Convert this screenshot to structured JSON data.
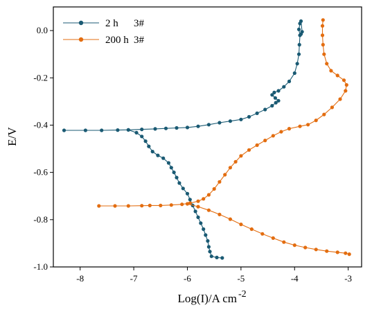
{
  "chart_data": {
    "type": "line",
    "xlabel": "Log(I)/A cm",
    "xlabel_superscript": "-2",
    "ylabel": "E/V",
    "xlim": [
      -8.5,
      -2.75
    ],
    "ylim": [
      -1.0,
      0.1
    ],
    "xticks": [
      -8,
      -7,
      -6,
      -5,
      -4,
      -3
    ],
    "yticks": [
      0.0,
      -0.2,
      -0.4,
      -0.6,
      -0.8,
      -1.0
    ],
    "xtick_labels": [
      "-8",
      "-7",
      "-6",
      "-5",
      "-4",
      "-3"
    ],
    "ytick_labels": [
      "0.0",
      "-0.2",
      "-0.4",
      "-0.6",
      "-0.8",
      "-1.0"
    ],
    "grid": false,
    "legend_position": "top-left",
    "series": [
      {
        "name": "2 h",
        "sample": "3#",
        "color": "#1a5a73",
        "points": [
          [
            -8.3,
            -0.422
          ],
          [
            -7.9,
            -0.422
          ],
          [
            -7.6,
            -0.422
          ],
          [
            -7.3,
            -0.421
          ],
          [
            -7.1,
            -0.42
          ],
          [
            -6.85,
            -0.418
          ],
          [
            -6.6,
            -0.416
          ],
          [
            -6.4,
            -0.414
          ],
          [
            -6.2,
            -0.412
          ],
          [
            -6.0,
            -0.41
          ],
          [
            -5.8,
            -0.405
          ],
          [
            -5.6,
            -0.398
          ],
          [
            -5.4,
            -0.39
          ],
          [
            -5.2,
            -0.383
          ],
          [
            -5.0,
            -0.376
          ],
          [
            -4.85,
            -0.365
          ],
          [
            -4.7,
            -0.35
          ],
          [
            -4.55,
            -0.334
          ],
          [
            -4.42,
            -0.318
          ],
          [
            -4.35,
            -0.305
          ],
          [
            -4.3,
            -0.297
          ],
          [
            -4.36,
            -0.285
          ],
          [
            -4.42,
            -0.272
          ],
          [
            -4.38,
            -0.262
          ],
          [
            -4.3,
            -0.255
          ],
          [
            -4.2,
            -0.238
          ],
          [
            -4.1,
            -0.215
          ],
          [
            -4.0,
            -0.18
          ],
          [
            -3.95,
            -0.14
          ],
          [
            -3.92,
            -0.1
          ],
          [
            -3.91,
            -0.06
          ],
          [
            -3.9,
            -0.02
          ],
          [
            -3.92,
            0.005
          ],
          [
            -3.9,
            0.03
          ],
          [
            -3.88,
            0.04
          ],
          [
            -3.86,
            -0.005
          ],
          [
            -3.88,
            -0.015
          ]
        ],
        "points_cathodic": [
          [
            -7.1,
            -0.42
          ],
          [
            -6.95,
            -0.432
          ],
          [
            -6.85,
            -0.448
          ],
          [
            -6.78,
            -0.468
          ],
          [
            -6.72,
            -0.49
          ],
          [
            -6.65,
            -0.512
          ],
          [
            -6.55,
            -0.528
          ],
          [
            -6.45,
            -0.54
          ],
          [
            -6.35,
            -0.56
          ],
          [
            -6.3,
            -0.58
          ],
          [
            -6.25,
            -0.6
          ],
          [
            -6.2,
            -0.622
          ],
          [
            -6.15,
            -0.645
          ],
          [
            -6.08,
            -0.668
          ],
          [
            -6.0,
            -0.69
          ],
          [
            -5.95,
            -0.715
          ],
          [
            -5.9,
            -0.74
          ],
          [
            -5.85,
            -0.765
          ],
          [
            -5.8,
            -0.79
          ],
          [
            -5.75,
            -0.815
          ],
          [
            -5.7,
            -0.84
          ],
          [
            -5.66,
            -0.865
          ],
          [
            -5.62,
            -0.89
          ],
          [
            -5.6,
            -0.915
          ],
          [
            -5.58,
            -0.935
          ],
          [
            -5.55,
            -0.955
          ],
          [
            -5.45,
            -0.96
          ],
          [
            -5.35,
            -0.962
          ]
        ]
      },
      {
        "name": "200 h",
        "sample": "3#",
        "color": "#e36d10",
        "points": [
          [
            -7.65,
            -0.742
          ],
          [
            -7.35,
            -0.742
          ],
          [
            -7.1,
            -0.742
          ],
          [
            -6.85,
            -0.741
          ],
          [
            -6.7,
            -0.74
          ],
          [
            -6.5,
            -0.74
          ],
          [
            -6.3,
            -0.738
          ],
          [
            -6.1,
            -0.735
          ],
          [
            -5.95,
            -0.73
          ],
          [
            -5.8,
            -0.722
          ],
          [
            -5.7,
            -0.712
          ],
          [
            -5.6,
            -0.695
          ],
          [
            -5.5,
            -0.67
          ],
          [
            -5.4,
            -0.64
          ],
          [
            -5.3,
            -0.61
          ],
          [
            -5.2,
            -0.58
          ],
          [
            -5.1,
            -0.555
          ],
          [
            -5.0,
            -0.53
          ],
          [
            -4.85,
            -0.505
          ],
          [
            -4.7,
            -0.485
          ],
          [
            -4.55,
            -0.465
          ],
          [
            -4.4,
            -0.445
          ],
          [
            -4.25,
            -0.428
          ],
          [
            -4.1,
            -0.415
          ],
          [
            -3.9,
            -0.405
          ],
          [
            -3.75,
            -0.398
          ],
          [
            -3.6,
            -0.38
          ],
          [
            -3.45,
            -0.355
          ],
          [
            -3.3,
            -0.325
          ],
          [
            -3.15,
            -0.29
          ],
          [
            -3.05,
            -0.255
          ],
          [
            -3.03,
            -0.23
          ],
          [
            -3.08,
            -0.21
          ],
          [
            -3.2,
            -0.19
          ],
          [
            -3.32,
            -0.17
          ],
          [
            -3.4,
            -0.14
          ],
          [
            -3.45,
            -0.1
          ],
          [
            -3.47,
            -0.06
          ],
          [
            -3.48,
            -0.02
          ],
          [
            -3.48,
            0.02
          ],
          [
            -3.47,
            0.045
          ]
        ],
        "points_cathodic": [
          [
            -6.0,
            -0.733
          ],
          [
            -5.8,
            -0.745
          ],
          [
            -5.6,
            -0.76
          ],
          [
            -5.4,
            -0.778
          ],
          [
            -5.2,
            -0.798
          ],
          [
            -5.0,
            -0.82
          ],
          [
            -4.8,
            -0.84
          ],
          [
            -4.6,
            -0.86
          ],
          [
            -4.4,
            -0.878
          ],
          [
            -4.2,
            -0.895
          ],
          [
            -4.0,
            -0.908
          ],
          [
            -3.8,
            -0.918
          ],
          [
            -3.6,
            -0.926
          ],
          [
            -3.4,
            -0.933
          ],
          [
            -3.2,
            -0.938
          ],
          [
            -3.05,
            -0.942
          ],
          [
            -2.98,
            -0.946
          ]
        ]
      }
    ]
  },
  "legend": [
    {
      "label": "2 h",
      "sample": "3#"
    },
    {
      "label": "200 h",
      "sample": "3#"
    }
  ]
}
